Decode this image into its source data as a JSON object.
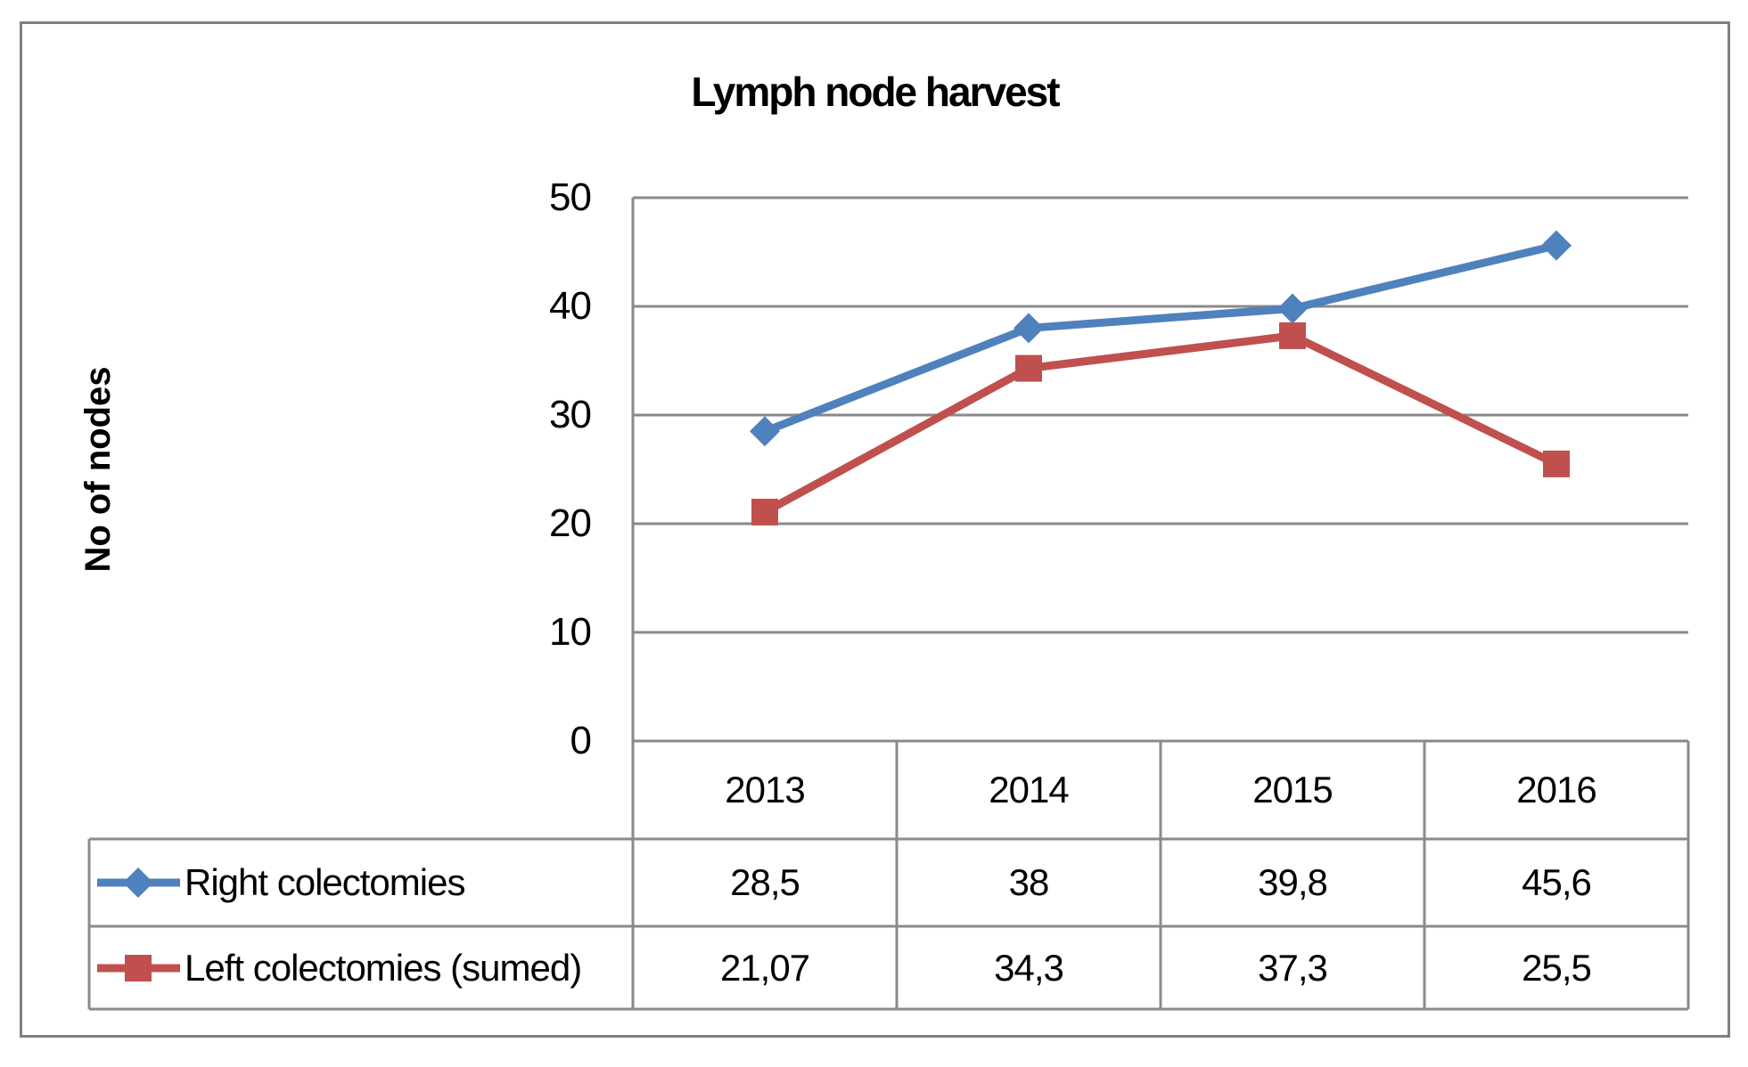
{
  "figure": {
    "background": "#ffffff",
    "frame_color": "#7f7f7f",
    "grid_color": "#8a8a8a"
  },
  "chart_data": {
    "type": "line",
    "title": "Lymph node harvest",
    "ylabel": "No of nodes",
    "xlabel": "",
    "categories": [
      "2013",
      "2014",
      "2015",
      "2016"
    ],
    "ylim": [
      0,
      50
    ],
    "yticks": [
      50,
      40,
      30,
      20,
      10,
      0
    ],
    "yticks_display": [
      "50",
      "40",
      "30",
      "20",
      "10",
      "0"
    ],
    "grid": true,
    "legend_position": "data-table-left",
    "series": [
      {
        "name": "Right colectomies",
        "color": "#4F81BD",
        "marker": "diamond",
        "values": [
          28.5,
          38,
          39.8,
          45.6
        ],
        "display_values": [
          "28,5",
          "38",
          "39,8",
          "45,6"
        ]
      },
      {
        "name": "Left colectomies (sumed)",
        "color": "#C0504D",
        "marker": "square",
        "values": [
          21.07,
          34.3,
          37.3,
          25.5
        ],
        "display_values": [
          "21,07",
          "34,3",
          "37,3",
          "25,5"
        ]
      }
    ]
  }
}
